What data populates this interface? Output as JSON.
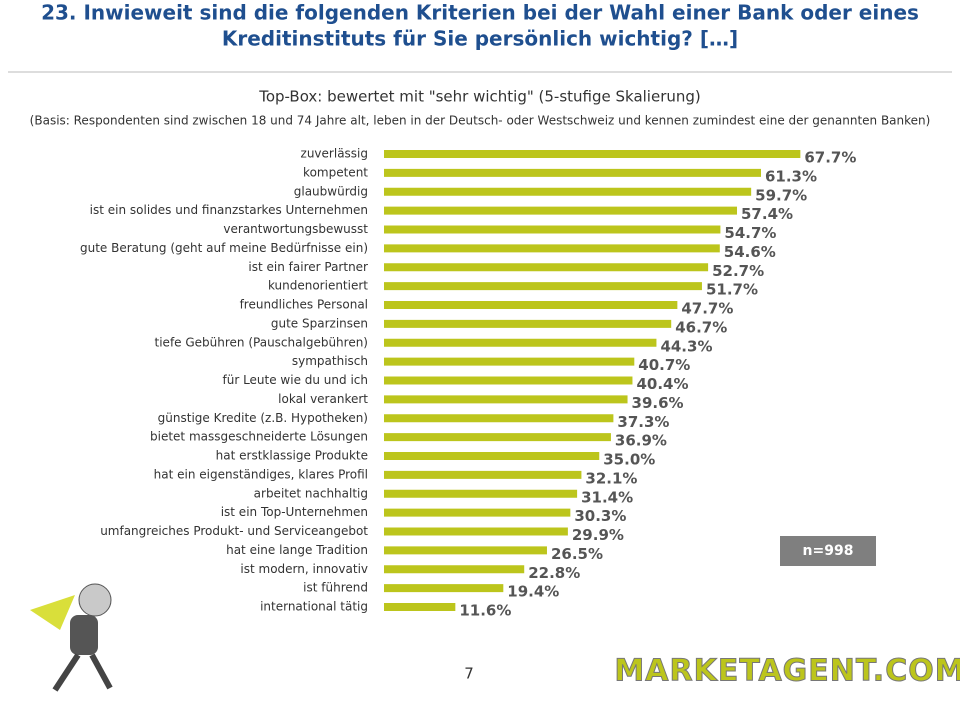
{
  "chart_data": {
    "type": "bar",
    "orientation": "horizontal",
    "title_lines": [
      "23. Inwieweit sind die folgenden Kriterien bei der Wahl einer Bank oder eines",
      "Kreditinstituts für Sie persönlich wichtig? […]"
    ],
    "subtitle": "Top-Box: bewertet mit \"sehr wichtig\" (5-stufige Skalierung)",
    "note": "(Basis: Respondenten sind zwischen 18 und 74 Jahre alt, leben in der Deutsch- oder Westschweiz und kennen zumindest eine der genannten Banken)",
    "categories": [
      "zuverlässig",
      "kompetent",
      "glaubwürdig",
      "ist ein solides und finanzstarkes Unternehmen",
      "verantwortungsbewusst",
      "gute Beratung (geht auf meine Bedürfnisse ein)",
      "ist ein fairer Partner",
      "kundenorientiert",
      "freundliches Personal",
      "gute Sparzinsen",
      "tiefe Gebühren (Pauschalgebühren)",
      "sympathisch",
      "für Leute wie du und ich",
      "lokal verankert",
      "günstige Kredite (z.B. Hypotheken)",
      "bietet massgeschneiderte Lösungen",
      "hat erstklassige Produkte",
      "hat ein eigenständiges, klares Profil",
      "arbeitet nachhaltig",
      "ist ein Top-Unternehmen",
      "umfangreiches Produkt- und Serviceangebot",
      "hat eine lange Tradition",
      "ist modern, innovativ",
      "ist führend",
      "international tätig"
    ],
    "values": [
      67.7,
      61.3,
      59.7,
      57.4,
      54.7,
      54.6,
      52.7,
      51.7,
      47.7,
      46.7,
      44.3,
      40.7,
      40.4,
      39.6,
      37.3,
      36.9,
      35.0,
      32.1,
      31.4,
      30.3,
      29.9,
      26.5,
      22.8,
      19.4,
      11.6
    ],
    "value_labels": [
      "67.7%",
      "61.3%",
      "59.7%",
      "57.4%",
      "54.7%",
      "54.6%",
      "52.7%",
      "51.7%",
      "47.7%",
      "46.7%",
      "44.3%",
      "40.7%",
      "40.4%",
      "39.6%",
      "37.3%",
      "36.9%",
      "35.0%",
      "32.1%",
      "31.4%",
      "30.3%",
      "29.9%",
      "26.5%",
      "22.8%",
      "19.4%",
      "11.6%"
    ],
    "color": "#bcc51c",
    "sample": "n=998"
  },
  "page_number": "7",
  "logo": "MARKETAGENT.COM"
}
